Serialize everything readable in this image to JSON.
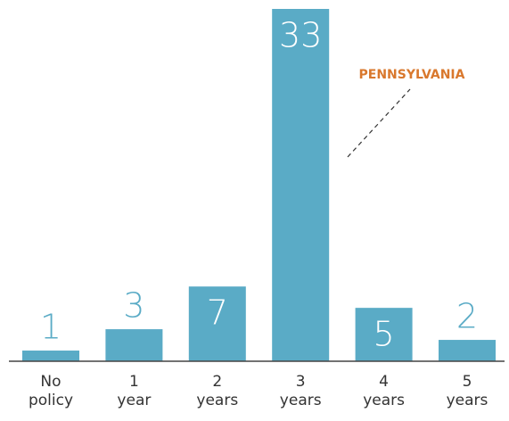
{
  "chart_data": {
    "type": "bar",
    "categories": [
      "No policy",
      "1 year",
      "2 years",
      "3 years",
      "4 years",
      "5 years"
    ],
    "values": [
      1,
      3,
      7,
      33,
      5,
      2
    ],
    "color": "#5aabc6",
    "ylim": [
      0,
      33
    ],
    "annotation": "PENNSYLVANIA"
  }
}
